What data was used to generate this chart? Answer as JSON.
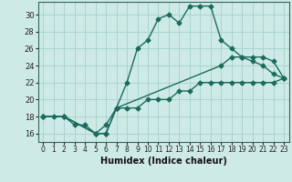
{
  "title": "",
  "xlabel": "Humidex (Indice chaleur)",
  "bg_color": "#ceeae6",
  "grid_color": "#a8d4d0",
  "line_color": "#1a6b5e",
  "marker": "D",
  "markersize": 2.5,
  "linewidth": 1.0,
  "xlim": [
    -0.5,
    23.5
  ],
  "ylim": [
    15.0,
    31.5
  ],
  "xticks": [
    0,
    1,
    2,
    3,
    4,
    5,
    6,
    7,
    8,
    9,
    10,
    11,
    12,
    13,
    14,
    15,
    16,
    17,
    18,
    19,
    20,
    21,
    22,
    23
  ],
  "yticks": [
    16,
    18,
    20,
    22,
    24,
    26,
    28,
    30
  ],
  "line1_x": [
    0,
    1,
    2,
    3,
    4,
    5,
    6,
    7,
    8,
    9,
    10,
    11,
    12,
    13,
    14,
    15,
    16,
    17,
    18,
    19,
    20,
    21,
    22,
    23
  ],
  "line1_y": [
    18,
    18,
    18,
    17,
    17,
    16,
    17,
    19,
    22,
    26,
    27,
    29.5,
    30,
    29,
    31,
    31,
    31,
    27,
    26,
    25,
    24.5,
    24,
    23,
    22.5
  ],
  "line2_x": [
    0,
    2,
    5,
    6,
    7,
    8,
    9,
    10,
    11,
    12,
    13,
    14,
    15,
    16,
    17,
    18,
    19,
    20,
    21,
    22,
    23
  ],
  "line2_y": [
    18,
    18,
    16,
    16,
    19,
    19,
    19,
    20,
    20,
    20,
    21,
    21,
    22,
    22,
    22,
    22,
    22,
    22,
    22,
    22,
    22.5
  ],
  "line3_x": [
    0,
    2,
    5,
    6,
    7,
    17,
    18,
    19,
    20,
    21,
    22,
    23
  ],
  "line3_y": [
    18,
    18,
    16,
    16,
    19,
    24,
    25,
    25,
    25,
    25,
    24.5,
    22.5
  ]
}
